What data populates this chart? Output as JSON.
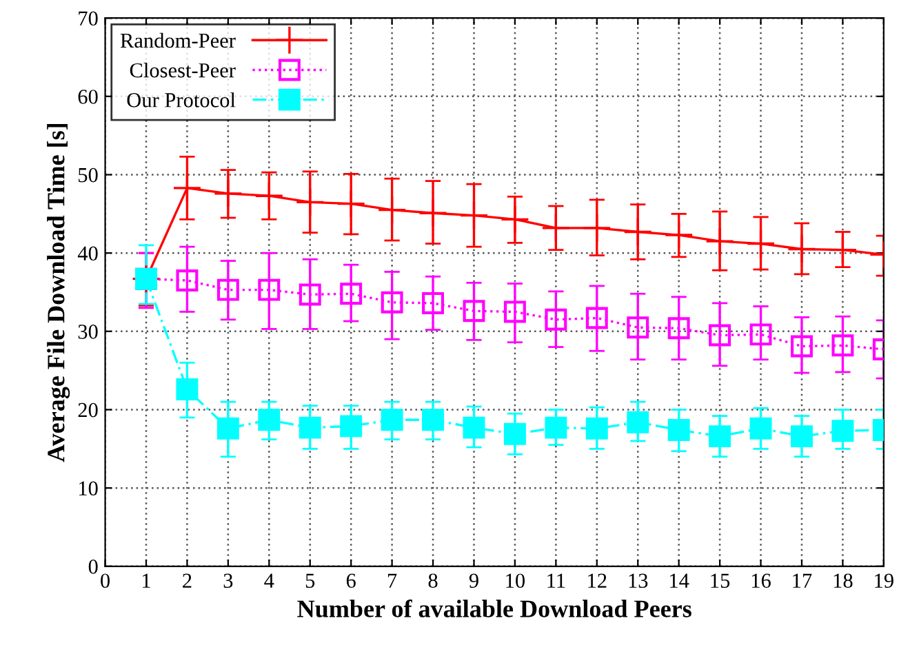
{
  "chart_data": {
    "type": "line",
    "xlabel": "Number of available Download Peers",
    "ylabel": "Average File Download Time [s]",
    "x": [
      1,
      2,
      3,
      4,
      5,
      6,
      7,
      8,
      9,
      10,
      11,
      12,
      13,
      14,
      15,
      16,
      17,
      18,
      19
    ],
    "xlim": [
      0,
      19
    ],
    "xticks": [
      0,
      1,
      2,
      3,
      4,
      5,
      6,
      7,
      8,
      9,
      10,
      11,
      12,
      13,
      14,
      15,
      16,
      17,
      18,
      19
    ],
    "ylim": [
      0,
      70
    ],
    "yticks": [
      0,
      10,
      20,
      30,
      40,
      50,
      60,
      70
    ],
    "grid": true,
    "legend": "top left",
    "series": [
      {
        "name": "Random-Peer",
        "color": "#ff0000",
        "marker": "cross",
        "line_style": "solid",
        "values": [
          36.7,
          48.3,
          47.6,
          47.3,
          46.5,
          46.3,
          45.5,
          45.1,
          44.8,
          44.3,
          43.2,
          43.2,
          42.7,
          42.3,
          41.5,
          41.2,
          40.5,
          40.4,
          39.8
        ],
        "errors": [
          [
            33.3,
            40
          ],
          [
            44.3,
            52.3
          ],
          [
            44.5,
            50.6
          ],
          [
            44.3,
            50.3
          ],
          [
            42.6,
            50.4
          ],
          [
            42.4,
            50.1
          ],
          [
            41.6,
            49.5
          ],
          [
            41.2,
            49.2
          ],
          [
            40.8,
            48.8
          ],
          [
            41.3,
            47.2
          ],
          [
            40.4,
            46
          ],
          [
            39.7,
            46.8
          ],
          [
            39.2,
            46.2
          ],
          [
            39.5,
            45
          ],
          [
            37.8,
            45.3
          ],
          [
            37.9,
            44.6
          ],
          [
            37.3,
            43.8
          ],
          [
            38.2,
            42.7
          ],
          [
            37.1,
            42.2
          ]
        ]
      },
      {
        "name": "Closest-Peer",
        "color": "#ff00ff",
        "marker": "square",
        "line_style": "dotted",
        "values": [
          36.7,
          36.5,
          35.3,
          35.3,
          34.7,
          34.8,
          33.7,
          33.6,
          32.6,
          32.5,
          31.5,
          31.7,
          30.5,
          30.4,
          29.5,
          29.6,
          28.1,
          28.2,
          27.7
        ],
        "errors": [
          [
            33,
            40
          ],
          [
            32.5,
            40.8
          ],
          [
            31.5,
            39
          ],
          [
            30.3,
            40
          ],
          [
            30.3,
            39.2
          ],
          [
            31.3,
            38.5
          ],
          [
            29,
            37.6
          ],
          [
            30.2,
            37
          ],
          [
            28.9,
            36.2
          ],
          [
            28.6,
            36.1
          ],
          [
            28,
            35.1
          ],
          [
            27.5,
            35.8
          ],
          [
            26.4,
            34.8
          ],
          [
            26.4,
            34.4
          ],
          [
            25.6,
            33.6
          ],
          [
            26.4,
            33.2
          ],
          [
            24.7,
            31.8
          ],
          [
            24.8,
            31.9
          ],
          [
            24,
            31.4
          ]
        ]
      },
      {
        "name": "Our Protocol",
        "color": "#00ffff",
        "marker": "square",
        "line_style": "dashed",
        "values": [
          36.7,
          22.6,
          17.6,
          18.7,
          17.7,
          17.9,
          18.7,
          18.7,
          17.7,
          16.9,
          17.7,
          17.6,
          18.4,
          17.4,
          16.6,
          17.6,
          16.6,
          17.3,
          17.4
        ],
        "errors": [
          [
            33.5,
            41
          ],
          [
            19,
            26
          ],
          [
            14,
            21
          ],
          [
            16.2,
            21
          ],
          [
            15,
            20.5
          ],
          [
            15,
            20.5
          ],
          [
            16.2,
            21
          ],
          [
            16.2,
            21
          ],
          [
            15.2,
            20.4
          ],
          [
            14.3,
            19.5
          ],
          [
            15.5,
            20
          ],
          [
            15,
            20.3
          ],
          [
            16,
            21
          ],
          [
            14.7,
            20
          ],
          [
            14,
            19.2
          ],
          [
            15,
            20.2
          ],
          [
            14,
            19.2
          ],
          [
            15,
            20
          ],
          [
            15,
            20
          ]
        ]
      }
    ]
  }
}
